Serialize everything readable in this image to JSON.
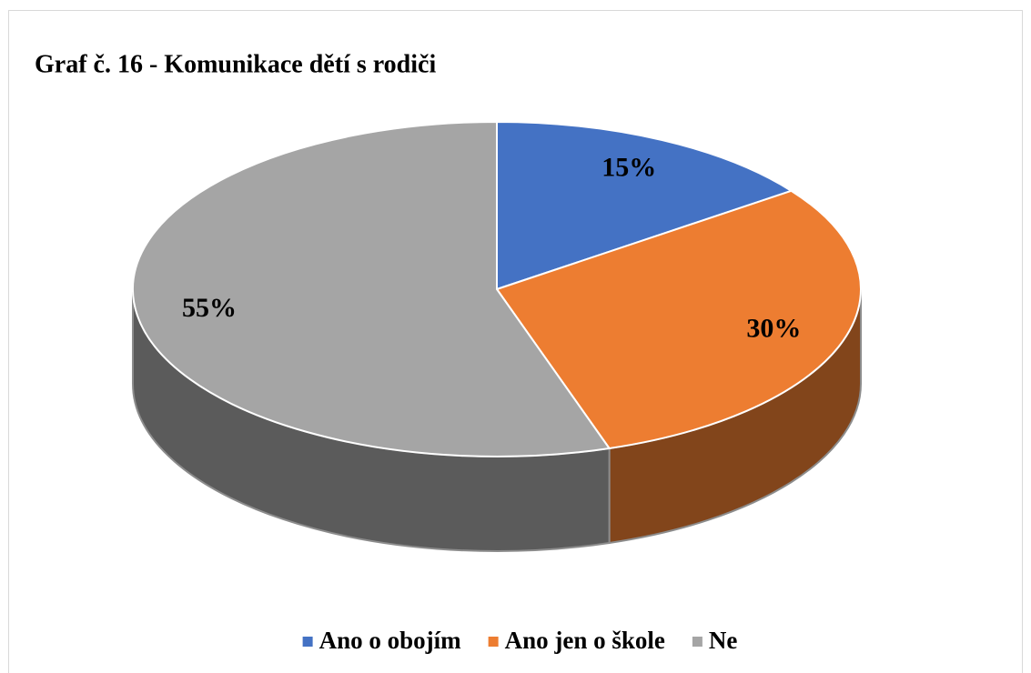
{
  "chart_data": {
    "type": "pie",
    "title": "Graf č. 16 - Komunikace dětí s rodiči",
    "categories": [
      "Ano o obojím",
      "Ano jen o škole",
      "Ne"
    ],
    "values": [
      15,
      30,
      55
    ],
    "value_labels": [
      "15%",
      "30%",
      "55%"
    ],
    "colors": [
      "#4472c4",
      "#ed7d31",
      "#a5a5a5"
    ],
    "legend": "bottom"
  }
}
